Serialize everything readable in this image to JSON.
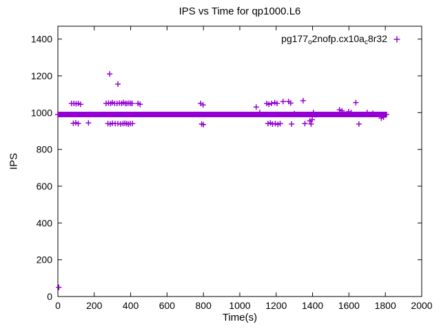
{
  "chart_data": {
    "type": "scatter",
    "title": "IPS vs Time for qp1000.L6",
    "xlabel": "Time(s)",
    "ylabel": "IPS",
    "xlim": [
      0,
      2000
    ],
    "ylim": [
      0,
      1470
    ],
    "x_ticks": [
      0,
      200,
      400,
      600,
      800,
      1000,
      1200,
      1400,
      1600,
      1800,
      2000
    ],
    "y_ticks": [
      0,
      200,
      400,
      600,
      800,
      1000,
      1200,
      1400
    ],
    "grid": false,
    "legend_position": "top-right-inside",
    "series": [
      {
        "name": "pg177o2nofp.cx10ac8r32",
        "label_parts": [
          {
            "t": "pg177",
            "sub": false
          },
          {
            "t": "o",
            "sub": true
          },
          {
            "t": "2nofp.cx10a",
            "sub": false
          },
          {
            "t": "c",
            "sub": true
          },
          {
            "t": "8r32",
            "sub": false
          }
        ],
        "color": "#9400d3",
        "marker": "plus",
        "band": {
          "y_center": 990,
          "y_low": 976,
          "y_high": 1004,
          "x_start": 0,
          "x_end": 1810
        },
        "points": [
          [
            5,
            50
          ],
          [
            75,
            1050
          ],
          [
            88,
            1050
          ],
          [
            100,
            1048
          ],
          [
            112,
            1050
          ],
          [
            125,
            1045
          ],
          [
            85,
            942
          ],
          [
            98,
            945
          ],
          [
            112,
            940
          ],
          [
            168,
            944
          ],
          [
            265,
            1050
          ],
          [
            278,
            1052
          ],
          [
            290,
            1050
          ],
          [
            300,
            1055
          ],
          [
            312,
            1050
          ],
          [
            325,
            1050
          ],
          [
            338,
            1052
          ],
          [
            350,
            1050
          ],
          [
            360,
            1055
          ],
          [
            370,
            1050
          ],
          [
            380,
            1050
          ],
          [
            390,
            1052
          ],
          [
            400,
            1050
          ],
          [
            408,
            1050
          ],
          [
            440,
            1050
          ],
          [
            452,
            1045
          ],
          [
            275,
            940
          ],
          [
            288,
            938
          ],
          [
            300,
            942
          ],
          [
            315,
            940
          ],
          [
            330,
            940
          ],
          [
            345,
            938
          ],
          [
            358,
            940
          ],
          [
            368,
            942
          ],
          [
            378,
            940
          ],
          [
            388,
            938
          ],
          [
            398,
            940
          ],
          [
            410,
            940
          ],
          [
            285,
            1210
          ],
          [
            330,
            1155
          ],
          [
            785,
            1050
          ],
          [
            798,
            1042
          ],
          [
            790,
            938
          ],
          [
            800,
            935
          ],
          [
            1090,
            1030
          ],
          [
            1110,
            1000
          ],
          [
            1148,
            1050
          ],
          [
            1160,
            1045
          ],
          [
            1175,
            1050
          ],
          [
            1192,
            1055
          ],
          [
            1205,
            1050
          ],
          [
            1238,
            1060
          ],
          [
            1268,
            1060
          ],
          [
            1280,
            1052
          ],
          [
            1155,
            940
          ],
          [
            1168,
            944
          ],
          [
            1180,
            938
          ],
          [
            1195,
            940
          ],
          [
            1210,
            936
          ],
          [
            1222,
            940
          ],
          [
            1285,
            938
          ],
          [
            1300,
            995
          ],
          [
            1348,
            1065
          ],
          [
            1358,
            940
          ],
          [
            1385,
            955
          ],
          [
            1392,
            938
          ],
          [
            1398,
            962
          ],
          [
            1405,
            1000
          ],
          [
            1418,
            988
          ],
          [
            1548,
            1015
          ],
          [
            1562,
            1010
          ],
          [
            1598,
            1005
          ],
          [
            1612,
            1000
          ],
          [
            1638,
            1055
          ],
          [
            1655,
            938
          ],
          [
            1700,
            1000
          ],
          [
            1732,
            996
          ],
          [
            1778,
            970
          ],
          [
            1790,
            975
          ]
        ]
      }
    ]
  }
}
